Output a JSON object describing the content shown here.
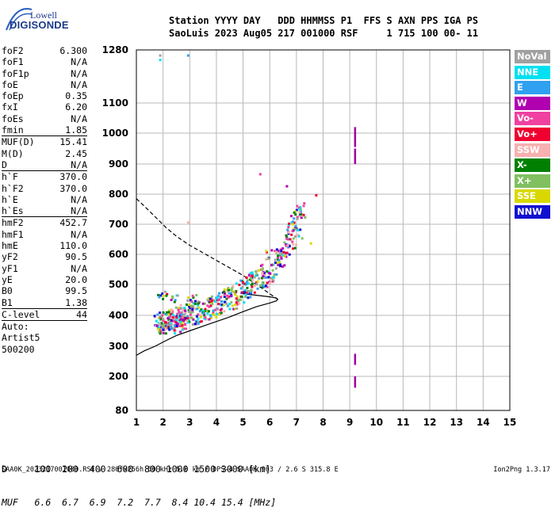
{
  "logo": {
    "top": "Lowell",
    "bottom": "DIGISONDE"
  },
  "header": {
    "line1": "Station YYYY DAY   DDD HHMMSS P1  FFS S AXN PPS IGA PS",
    "line2": "SaoLuis 2023 Aug05 217 001000 RSF     1 715 100 00- 11"
  },
  "params": [
    {
      "label": "foF2",
      "value": "6.300"
    },
    {
      "label": "foF1",
      "value": "N/A"
    },
    {
      "label": "foF1p",
      "value": "N/A"
    },
    {
      "label": "foE",
      "value": "N/A"
    },
    {
      "label": "foEp",
      "value": "0.35"
    },
    {
      "label": "fxI",
      "value": "6.20"
    },
    {
      "label": "foEs",
      "value": "N/A"
    },
    {
      "label": "fmin",
      "value": "1.85",
      "sep": true
    },
    {
      "label": "MUF(D)",
      "value": "15.41"
    },
    {
      "label": "M(D)",
      "value": "2.45"
    },
    {
      "label": "D",
      "value": "N/A",
      "sep": true
    },
    {
      "label": "h`F",
      "value": "370.0"
    },
    {
      "label": "h`F2",
      "value": "370.0"
    },
    {
      "label": "h`E",
      "value": "N/A"
    },
    {
      "label": "h`Es",
      "value": "N/A",
      "sep": true
    },
    {
      "label": "hmF2",
      "value": "452.7"
    },
    {
      "label": "hmF1",
      "value": "N/A"
    },
    {
      "label": "hmE",
      "value": "110.0"
    },
    {
      "label": "yF2",
      "value": "90.5"
    },
    {
      "label": "yF1",
      "value": "N/A"
    },
    {
      "label": "yE",
      "value": "20.0"
    },
    {
      "label": "B0",
      "value": "99.5"
    },
    {
      "label": "B1",
      "value": "1.38",
      "sep": true
    },
    {
      "label": "C-level",
      "value": "44",
      "sep": true
    },
    {
      "label": "Auto:",
      "value": ""
    },
    {
      "label": "Artist5",
      "value": ""
    },
    {
      "label": "500200",
      "value": ""
    }
  ],
  "legend": [
    {
      "label": "NoVal",
      "color": "#a0a0a0"
    },
    {
      "label": "NNE",
      "color": "#00e0f0"
    },
    {
      "label": "E",
      "color": "#30a0f0"
    },
    {
      "label": "W",
      "color": "#b000b0"
    },
    {
      "label": "Vo-",
      "color": "#f040a0"
    },
    {
      "label": "Vo+",
      "color": "#f00030"
    },
    {
      "label": "SSW",
      "color": "#f8b0b0"
    },
    {
      "label": "X-",
      "color": "#008000"
    },
    {
      "label": "X+",
      "color": "#80c060"
    },
    {
      "label": "SSE",
      "color": "#d8d800"
    },
    {
      "label": "NNW",
      "color": "#1010d0"
    }
  ],
  "dmuf": {
    "d_line": "D     100  200  400  600  800 1000 1500 3000 [km]",
    "muf_line": "MUF   6.6  6.7  6.9  7.2  7.7  8.4 10.4 15.4 [MHz]"
  },
  "footer": {
    "left": "SAA0K_2023217001000.RSF / 280fx256h 50 kHz 5.0 km / DPS-4 SAA0K 903 / 2.6 S 315.8 E",
    "right": "Ion2Png 1.3.17"
  },
  "chart_data": {
    "type": "scatter",
    "x_ticks": [
      1,
      2,
      3,
      4,
      5,
      6,
      7,
      8,
      9,
      10,
      11,
      12,
      13,
      14,
      15
    ],
    "y_ticks": [
      80,
      200,
      300,
      400,
      500,
      600,
      700,
      800,
      900,
      1000,
      1100,
      1280
    ],
    "xlim": [
      1,
      15
    ],
    "ylim": [
      80,
      1280
    ],
    "grid": true,
    "trace": [
      [
        1.8,
        375
      ],
      [
        1.9,
        380
      ],
      [
        2.0,
        385
      ],
      [
        2.1,
        388
      ],
      [
        2.2,
        390
      ],
      [
        2.3,
        392
      ],
      [
        2.4,
        395
      ],
      [
        2.5,
        398
      ],
      [
        2.6,
        400
      ],
      [
        2.7,
        402
      ],
      [
        2.8,
        405
      ],
      [
        2.9,
        407
      ],
      [
        3.0,
        410
      ],
      [
        3.2,
        415
      ],
      [
        3.4,
        420
      ],
      [
        3.6,
        425
      ],
      [
        3.8,
        432
      ],
      [
        4.0,
        440
      ],
      [
        4.2,
        447
      ],
      [
        4.4,
        455
      ],
      [
        4.6,
        462
      ],
      [
        4.8,
        472
      ],
      [
        5.0,
        485
      ],
      [
        5.2,
        498
      ],
      [
        5.4,
        510
      ],
      [
        5.6,
        522
      ],
      [
        5.8,
        538
      ],
      [
        6.0,
        555
      ],
      [
        6.2,
        575
      ],
      [
        6.4,
        600
      ],
      [
        6.6,
        630
      ],
      [
        6.8,
        665
      ],
      [
        7.0,
        700
      ],
      [
        7.1,
        730
      ]
    ],
    "spread": [
      [
        1.9,
        360
      ],
      [
        2.0,
        350
      ],
      [
        2.2,
        370
      ],
      [
        2.4,
        365
      ],
      [
        2.6,
        380
      ],
      [
        2.8,
        375
      ],
      [
        2.9,
        440
      ],
      [
        3.0,
        450
      ],
      [
        3.1,
        460
      ],
      [
        2.5,
        455
      ],
      [
        2.2,
        460
      ],
      [
        2.0,
        470
      ],
      [
        1.9,
        475
      ],
      [
        3.3,
        395
      ],
      [
        3.5,
        405
      ],
      [
        3.7,
        445
      ],
      [
        3.9,
        455
      ],
      [
        4.1,
        460
      ],
      [
        4.3,
        470
      ],
      [
        4.5,
        475
      ],
      [
        5.1,
        520
      ],
      [
        5.3,
        530
      ],
      [
        5.6,
        545
      ],
      [
        5.8,
        510
      ],
      [
        6.1,
        540
      ],
      [
        6.3,
        620
      ],
      [
        6.5,
        610
      ],
      [
        6.7,
        650
      ],
      [
        6.9,
        690
      ],
      [
        7.0,
        760
      ],
      [
        7.2,
        740
      ],
      [
        6.8,
        730
      ],
      [
        6.6,
        700
      ],
      [
        5.9,
        600
      ],
      [
        5.0,
        470
      ],
      [
        4.7,
        450
      ],
      [
        3.2,
        380
      ],
      [
        2.7,
        355
      ],
      [
        2.3,
        345
      ],
      [
        1.95,
        400
      ]
    ],
    "isolated": [
      [
        1.85,
        1265
      ],
      [
        1.85,
        1250
      ],
      [
        2.9,
        1265
      ],
      [
        6.6,
        830
      ],
      [
        5.6,
        870
      ],
      [
        7.7,
        800
      ],
      [
        2.9,
        710
      ],
      [
        1.85,
        345
      ],
      [
        5.6,
        500
      ],
      [
        7.5,
        640
      ]
    ],
    "vertical_marks": [
      {
        "x": 9.2,
        "y_from": 955,
        "y_to": 1020
      },
      {
        "x": 9.2,
        "y_from": 900,
        "y_to": 950
      },
      {
        "x": 9.2,
        "y_from": 238,
        "y_to": 275
      },
      {
        "x": 9.2,
        "y_from": 160,
        "y_to": 200
      }
    ],
    "profile_solid": [
      [
        1.0,
        270
      ],
      [
        1.3,
        285
      ],
      [
        1.7,
        300
      ],
      [
        2.1,
        318
      ],
      [
        2.5,
        335
      ],
      [
        3.0,
        350
      ],
      [
        3.5,
        365
      ],
      [
        4.0,
        380
      ],
      [
        4.5,
        395
      ],
      [
        5.0,
        412
      ],
      [
        5.5,
        428
      ],
      [
        6.0,
        440
      ],
      [
        6.25,
        447
      ],
      [
        6.3,
        452
      ],
      [
        6.25,
        456
      ],
      [
        6.0,
        460
      ],
      [
        5.5,
        465
      ],
      [
        5.0,
        470
      ]
    ],
    "profile_dashed": [
      [
        1.0,
        785
      ],
      [
        1.3,
        760
      ],
      [
        1.7,
        725
      ],
      [
        2.1,
        690
      ],
      [
        2.5,
        660
      ],
      [
        3.0,
        630
      ],
      [
        3.5,
        605
      ],
      [
        4.0,
        580
      ],
      [
        4.5,
        555
      ],
      [
        5.0,
        530
      ],
      [
        5.5,
        500
      ],
      [
        6.0,
        470
      ],
      [
        6.3,
        452
      ]
    ]
  }
}
